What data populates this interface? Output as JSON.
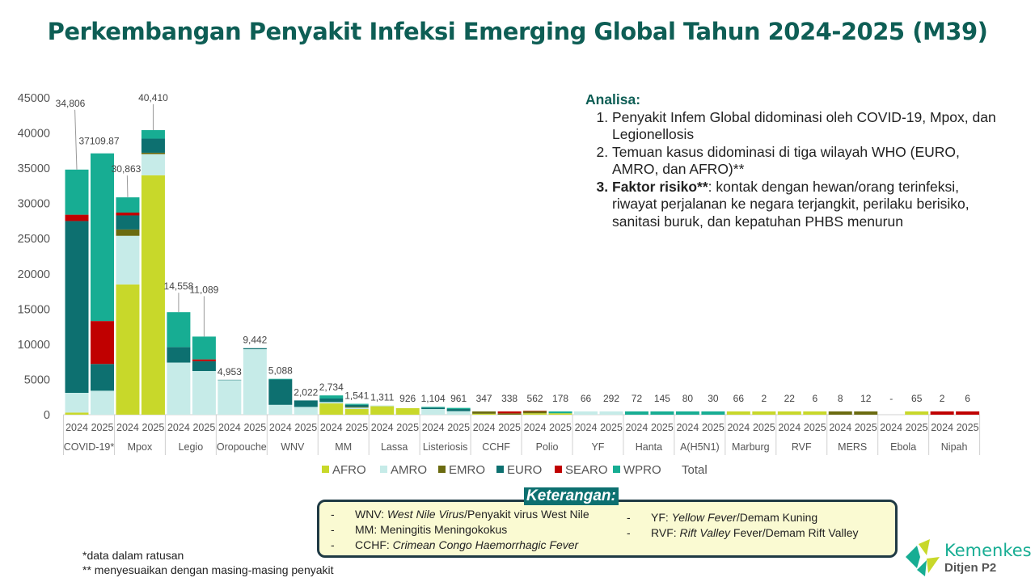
{
  "title": "Perkembangan Penyakit Infeksi Emerging Global Tahun 2024-2025 (M39)",
  "chart_data": {
    "type": "bar",
    "stacked": true,
    "title": "Perkembangan Penyakit Infeksi Emerging Global Tahun 2024-2025 (M39)",
    "ylim": [
      0,
      45000
    ],
    "yticks": [
      0,
      5000,
      10000,
      15000,
      20000,
      25000,
      30000,
      35000,
      40000,
      45000
    ],
    "regions": [
      "AFRO",
      "AMRO",
      "EMRO",
      "EURO",
      "SEARO",
      "WPRO"
    ],
    "legend": [
      "AFRO",
      "AMRO",
      "EMRO",
      "EURO",
      "SEARO",
      "WPRO",
      "Total"
    ],
    "legend_position": "bottom",
    "colors": {
      "AFRO": "#c8d82a",
      "AMRO": "#c6ebe8",
      "EMRO": "#6b6b10",
      "EURO": "#0d7070",
      "SEARO": "#c00000",
      "WPRO": "#17ad93"
    },
    "groups": [
      {
        "name": "COVID-19*",
        "bars": [
          {
            "year": "2024",
            "label": "34,806",
            "segments": [
              300,
              2800,
              0,
              24400,
              900,
              6406
            ]
          },
          {
            "year": "2025",
            "label": "37109.87",
            "segments": [
              0,
              3400,
              0,
              3800,
              6100,
              23810
            ]
          }
        ]
      },
      {
        "name": "Mpox",
        "bars": [
          {
            "year": "2024",
            "label": "30,863",
            "segments": [
              18500,
              6900,
              900,
              2000,
              400,
              2163
            ]
          },
          {
            "year": "2025",
            "label": "40,410",
            "segments": [
              34000,
              3000,
              200,
              2000,
              0,
              1210
            ]
          }
        ]
      },
      {
        "name": "Legio",
        "bars": [
          {
            "year": "2024",
            "label": "14,558",
            "segments": [
              0,
              7400,
              0,
              2200,
              0,
              4958
            ]
          },
          {
            "year": "2025",
            "label": "11,089",
            "segments": [
              0,
              6200,
              0,
              1400,
              250,
              3239
            ]
          }
        ]
      },
      {
        "name": "Oropouche",
        "bars": [
          {
            "year": "2024",
            "label": "4,953",
            "segments": [
              0,
              4900,
              0,
              53,
              0,
              0
            ]
          },
          {
            "year": "2025",
            "label": "9,442",
            "segments": [
              0,
              9300,
              0,
              142,
              0,
              0
            ]
          }
        ]
      },
      {
        "name": "WNV",
        "bars": [
          {
            "year": "2024",
            "label": "5,088",
            "segments": [
              0,
              1400,
              0,
              3600,
              0,
              88
            ]
          },
          {
            "year": "2025",
            "label": "2,022",
            "segments": [
              0,
              1100,
              0,
              922,
              0,
              0
            ]
          }
        ]
      },
      {
        "name": "MM",
        "bars": [
          {
            "year": "2024",
            "label": "2,734",
            "segments": [
              1600,
              200,
              0,
              500,
              0,
              434
            ]
          },
          {
            "year": "2025",
            "label": "1,541",
            "segments": [
              800,
              200,
              100,
              300,
              0,
              141
            ]
          }
        ]
      },
      {
        "name": "Lassa",
        "bars": [
          {
            "year": "2024",
            "label": "1,311",
            "segments": [
              1200,
              111,
              0,
              0,
              0,
              0
            ]
          },
          {
            "year": "2025",
            "label": "926",
            "segments": [
              926,
              0,
              0,
              0,
              0,
              0
            ]
          }
        ]
      },
      {
        "name": "Listeriosis",
        "bars": [
          {
            "year": "2024",
            "label": "1,104",
            "segments": [
              0,
              800,
              0,
              200,
              0,
              104
            ]
          },
          {
            "year": "2025",
            "label": "961",
            "segments": [
              0,
              500,
              0,
              300,
              0,
              161
            ]
          }
        ]
      },
      {
        "name": "CCHF",
        "bars": [
          {
            "year": "2024",
            "label": "347",
            "segments": [
              100,
              0,
              247,
              0,
              0,
              0
            ]
          },
          {
            "year": "2025",
            "label": "338",
            "segments": [
              0,
              0,
              138,
              0,
              200,
              0
            ]
          }
        ]
      },
      {
        "name": "Polio",
        "bars": [
          {
            "year": "2024",
            "label": "562",
            "segments": [
              200,
              0,
              300,
              0,
              62,
              0
            ]
          },
          {
            "year": "2025",
            "label": "178",
            "segments": [
              78,
              0,
              0,
              0,
              0,
              100
            ]
          }
        ]
      },
      {
        "name": "YF",
        "bars": [
          {
            "year": "2024",
            "label": "66",
            "segments": [
              0,
              66,
              0,
              0,
              0,
              0
            ]
          },
          {
            "year": "2025",
            "label": "292",
            "segments": [
              0,
              292,
              0,
              0,
              0,
              0
            ]
          }
        ]
      },
      {
        "name": "Hanta",
        "bars": [
          {
            "year": "2024",
            "label": "72",
            "segments": [
              0,
              0,
              0,
              0,
              0,
              72
            ]
          },
          {
            "year": "2025",
            "label": "145",
            "segments": [
              0,
              0,
              0,
              0,
              0,
              145
            ]
          }
        ]
      },
      {
        "name": "A(H5N1)",
        "bars": [
          {
            "year": "2024",
            "label": "80",
            "segments": [
              0,
              0,
              0,
              0,
              0,
              80
            ]
          },
          {
            "year": "2025",
            "label": "30",
            "segments": [
              0,
              0,
              0,
              0,
              0,
              30
            ]
          }
        ]
      },
      {
        "name": "Marburg",
        "bars": [
          {
            "year": "2024",
            "label": "66",
            "segments": [
              66,
              0,
              0,
              0,
              0,
              0
            ]
          },
          {
            "year": "2025",
            "label": "2",
            "segments": [
              2,
              0,
              0,
              0,
              0,
              0
            ]
          }
        ]
      },
      {
        "name": "RVF",
        "bars": [
          {
            "year": "2024",
            "label": "22",
            "segments": [
              22,
              0,
              0,
              0,
              0,
              0
            ]
          },
          {
            "year": "2025",
            "label": "6",
            "segments": [
              6,
              0,
              0,
              0,
              0,
              0
            ]
          }
        ]
      },
      {
        "name": "MERS",
        "bars": [
          {
            "year": "2024",
            "label": "8",
            "segments": [
              0,
              0,
              8,
              0,
              0,
              0
            ]
          },
          {
            "year": "2025",
            "label": "12",
            "segments": [
              0,
              0,
              12,
              0,
              0,
              0
            ]
          }
        ]
      },
      {
        "name": "Ebola",
        "bars": [
          {
            "year": "2024",
            "label": "-",
            "segments": [
              0,
              0,
              0,
              0,
              0,
              0
            ]
          },
          {
            "year": "2025",
            "label": "65",
            "segments": [
              65,
              0,
              0,
              0,
              0,
              0
            ]
          }
        ]
      },
      {
        "name": "Nipah",
        "bars": [
          {
            "year": "2024",
            "label": "2",
            "segments": [
              0,
              0,
              0,
              0,
              2,
              0
            ]
          },
          {
            "year": "2025",
            "label": "6",
            "segments": [
              0,
              0,
              0,
              0,
              6,
              0
            ]
          }
        ]
      }
    ]
  },
  "analysis": {
    "heading": "Analisa:",
    "items": [
      {
        "num": "1.",
        "text": "Penyakit Infem Global didominasi oleh COVID-19, Mpox, dan Legionellosis"
      },
      {
        "num": "2.",
        "text": "Temuan kasus didominasi di tiga wilayah WHO (EURO, AMRO, dan AFRO)**"
      },
      {
        "num": "3.",
        "bold": "Faktor risiko**",
        "text": ": kontak dengan hewan/orang terinfeksi, riwayat perjalanan ke negara terjangkit, perilaku berisiko, sanitasi buruk, dan kepatuhan PHBS menurun"
      }
    ]
  },
  "keterangan": {
    "title": "Keterangan:",
    "left": [
      {
        "abbr": "WNV: ",
        "term": "West Nile Virus",
        "rest": "/Penyakit virus West Nile"
      },
      {
        "abbr": "MM: ",
        "term": "",
        "rest": "Meningitis Meningokokus"
      },
      {
        "abbr": "CCHF: ",
        "term": "Crimean Congo Haemorrhagic Fever",
        "rest": ""
      }
    ],
    "right": [
      {
        "abbr": "YF: ",
        "term": "Yellow Fever",
        "rest": "/Demam Kuning"
      },
      {
        "abbr": "RVF: ",
        "term": "Rift Valley",
        "rest": " Fever/Demam Rift Valley"
      }
    ]
  },
  "footnotes": [
    "*data dalam ratusan",
    "** menyesuaikan dengan masing-masing penyakit"
  ],
  "logo": {
    "name": "Kemenkes",
    "sub": "Ditjen P2"
  }
}
